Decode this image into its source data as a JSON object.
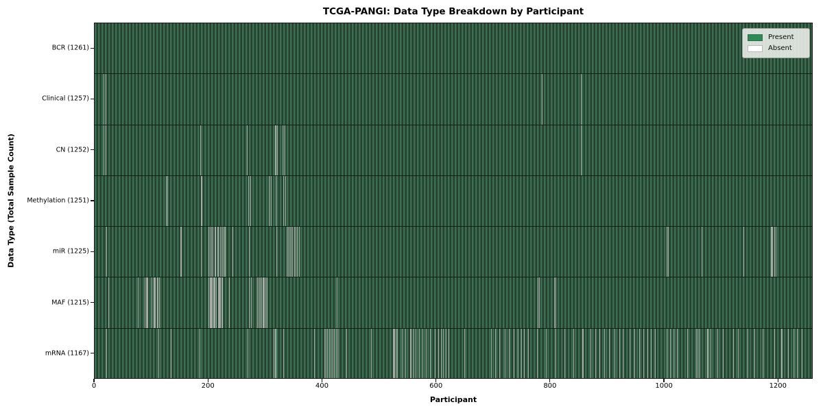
{
  "chart_data": {
    "type": "heatmap",
    "title": "TCGA-PANGI: Data Type Breakdown by Participant",
    "xlabel": "Participant",
    "ylabel": "Data Type (Total Sample Count)",
    "n_participants": 1261,
    "x_ticks": [
      0,
      200,
      400,
      600,
      800,
      1000,
      1200
    ],
    "xlim": [
      0,
      1261
    ],
    "grid": false,
    "legend_position": "upper right",
    "legend": [
      {
        "label": "Present",
        "color": "#2e8b57"
      },
      {
        "label": "Absent",
        "color": "#ffffff"
      }
    ],
    "colors": {
      "present": "#2e8b57",
      "absent": "#ffffff",
      "bar_stripe_light": "#3d6e51",
      "bar_stripe_dark": "#24422f",
      "absent_line": "#a3ada4",
      "row_separator": "#0a1a10",
      "spine": "#161616"
    },
    "rows": [
      {
        "name": "BCR",
        "label": "BCR (1261)",
        "total": 1261,
        "absent": []
      },
      {
        "name": "Clinical",
        "label": "Clinical (1257)",
        "total": 1257,
        "absent": [
          16,
          19,
          784,
          853
        ]
      },
      {
        "name": "CN",
        "label": "CN (1252)",
        "total": 1252,
        "absent": [
          16,
          19,
          185,
          267,
          317,
          320,
          330,
          333,
          853
        ]
      },
      {
        "name": "Methylation",
        "label": "Methylation (1251)",
        "total": 1251,
        "absent": [
          125,
          128,
          187,
          270,
          273,
          306,
          309,
          318,
          331,
          334
        ]
      },
      {
        "name": "miR",
        "label": "miR (1225)",
        "total": 1225,
        "absent": [
          20,
          151,
          186,
          200,
          202,
          205,
          207,
          210,
          212,
          215,
          217,
          220,
          222,
          225,
          227,
          229,
          242,
          271,
          319,
          337,
          339,
          342,
          344,
          347,
          350,
          352,
          355,
          358,
          1003,
          1006,
          1065,
          1138,
          1187,
          1189,
          1192,
          1195
        ]
      },
      {
        "name": "MAF",
        "label": "MAF (1215)",
        "total": 1215,
        "absent": [
          24,
          76,
          88,
          90,
          91,
          93,
          100,
          103,
          104,
          106,
          110,
          111,
          113,
          200,
          202,
          203,
          204,
          206,
          208,
          209,
          210,
          213,
          216,
          218,
          219,
          220,
          222,
          224,
          236,
          271,
          274,
          285,
          287,
          288,
          290,
          292,
          295,
          296,
          297,
          300,
          302,
          425,
          777,
          780,
          806,
          808
        ]
      },
      {
        "name": "mRNA",
        "label": "mRNA (1167)",
        "total": 1167,
        "absent": [
          20,
          112,
          134,
          184,
          268,
          314,
          317,
          331,
          385,
          403,
          405,
          408,
          411,
          414,
          417,
          420,
          423,
          426,
          441,
          485,
          524,
          526,
          528,
          531,
          539,
          545,
          554,
          558,
          563,
          569,
          575,
          581,
          588,
          597,
          603,
          608,
          611,
          616,
          621,
          648,
          695,
          703,
          710,
          720,
          727,
          735,
          742,
          748,
          753,
          760,
          776,
          792,
          808,
          824,
          840,
          856,
          870,
          878,
          886,
          894,
          902,
          912,
          920,
          926,
          939,
          947,
          955,
          963,
          970,
          976,
          983,
          1003,
          1009,
          1016,
          1022,
          1040,
          1055,
          1058,
          1061,
          1075,
          1081,
          1092,
          1102,
          1120,
          1129,
          1145,
          1157,
          1172,
          1192,
          1205,
          1216,
          1226,
          1232,
          1241
        ]
      }
    ]
  }
}
